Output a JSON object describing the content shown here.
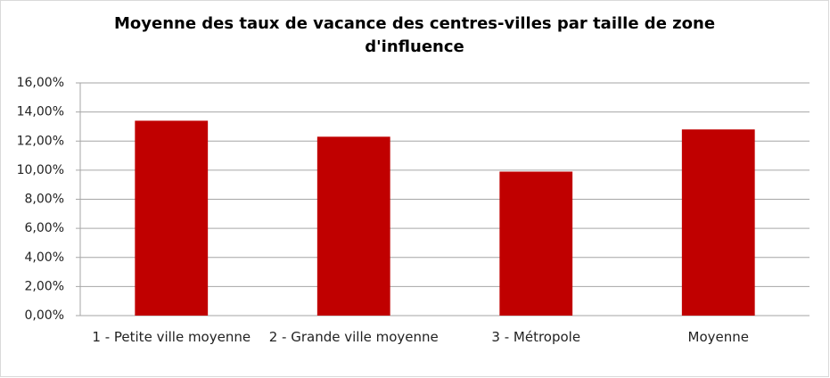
{
  "chart_data": {
    "type": "bar",
    "title": "Moyenne des taux de vacance des centres-villes par taille de zone d'influence",
    "categories": [
      "1 - Petite ville moyenne",
      "2 - Grande ville moyenne",
      "3 - Métropole",
      "Moyenne"
    ],
    "values": [
      13.4,
      12.3,
      9.9,
      12.8
    ],
    "color": "#c00000",
    "ylim": [
      0,
      16
    ],
    "yticks": [
      {
        "value": 0,
        "label": "0,00%"
      },
      {
        "value": 2,
        "label": "2,00%"
      },
      {
        "value": 4,
        "label": "4,00%"
      },
      {
        "value": 6,
        "label": "6,00%"
      },
      {
        "value": 8,
        "label": "8,00%"
      },
      {
        "value": 10,
        "label": "10,00%"
      },
      {
        "value": 12,
        "label": "12,00%"
      },
      {
        "value": 14,
        "label": "14,00%"
      },
      {
        "value": 16,
        "label": "16,00%"
      }
    ],
    "grid": true
  }
}
